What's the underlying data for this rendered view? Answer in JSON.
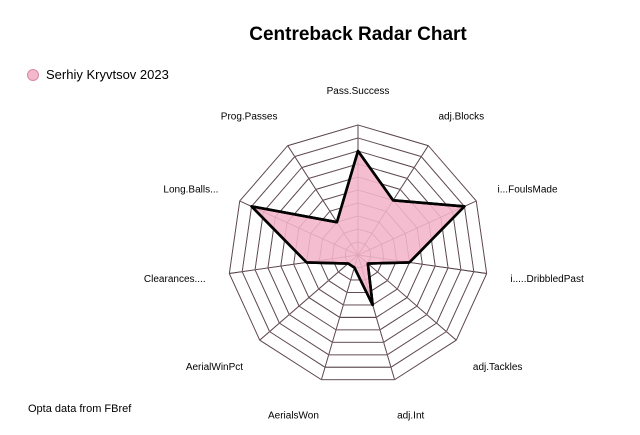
{
  "title": "Centreback Radar Chart",
  "legend_label": "Serhiy Kryvtsov 2023",
  "source_note": "Opta data from FBref",
  "colors": {
    "fill": "#f4b8cc",
    "fill_stroke": "#000000",
    "grid": "#000000",
    "inner_grid": "#e3a2b8"
  },
  "chart_data": {
    "type": "radar",
    "title": "Centreback Radar Chart",
    "axes": [
      "Pass.Success",
      "adj.Blocks",
      "i...FoulsMade",
      "i.....DribbledPast",
      "adj.Tackles",
      "adj.Int",
      "AerialsWon",
      "AerialWinPct",
      "Clearances....",
      "Long.Balls...",
      "Prog.Passes"
    ],
    "series": [
      {
        "name": "Serhiy Kryvtsov 2023",
        "values": [
          0.8,
          0.5,
          0.9,
          0.4,
          0.1,
          0.4,
          0.1,
          0.1,
          0.4,
          0.9,
          0.3
        ]
      }
    ],
    "range": [
      0,
      1
    ],
    "rings": 10,
    "legend_position": "top-left"
  }
}
